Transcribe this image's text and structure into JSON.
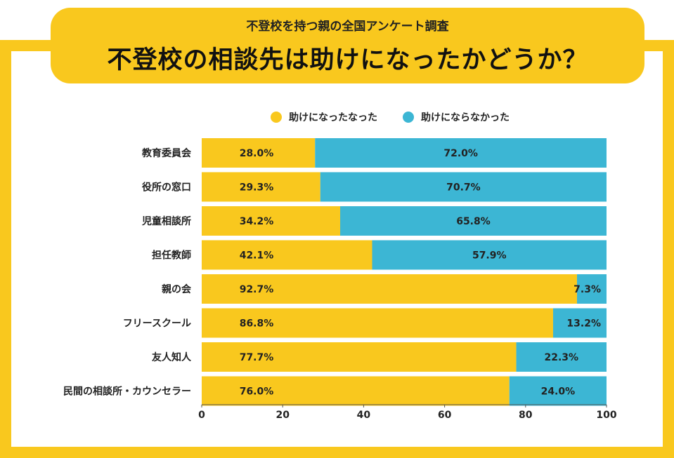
{
  "header": {
    "subtitle": "不登校を持つ親の全国アンケート調査",
    "title": "不登校の相談先は助けになったかどうか？"
  },
  "colors": {
    "helped": "#F9C81E",
    "not_helped": "#3CB6D4",
    "frame": "#F9C81E"
  },
  "chart_data": {
    "type": "bar",
    "orientation": "horizontal",
    "stacked": true,
    "categories": [
      "教育委員会",
      "役所の窓口",
      "児童相談所",
      "担任教師",
      "親の会",
      "フリースクール",
      "友人知人",
      "民間の相談所・カウンセラー"
    ],
    "series": [
      {
        "name": "助けになったなった",
        "values": [
          28.0,
          29.3,
          34.2,
          42.1,
          92.7,
          86.8,
          77.7,
          76.0
        ],
        "labels": [
          "28.0%",
          "29.3%",
          "34.2%",
          "42.1%",
          "92.7%",
          "86.8%",
          "77.7%",
          "76.0%"
        ]
      },
      {
        "name": "助けにならなかった",
        "values": [
          72.0,
          70.7,
          65.8,
          57.9,
          7.3,
          13.2,
          22.3,
          24.0
        ],
        "labels": [
          "72.0%",
          "70.7%",
          "65.8%",
          "57.9%",
          "7.3%",
          "13.2%",
          "22.3%",
          "24.0%"
        ]
      }
    ],
    "xlim": [
      0,
      100
    ],
    "xticks": [
      "0",
      "20",
      "40",
      "60",
      "80",
      "100"
    ],
    "legend_position": "top",
    "grid": false
  }
}
